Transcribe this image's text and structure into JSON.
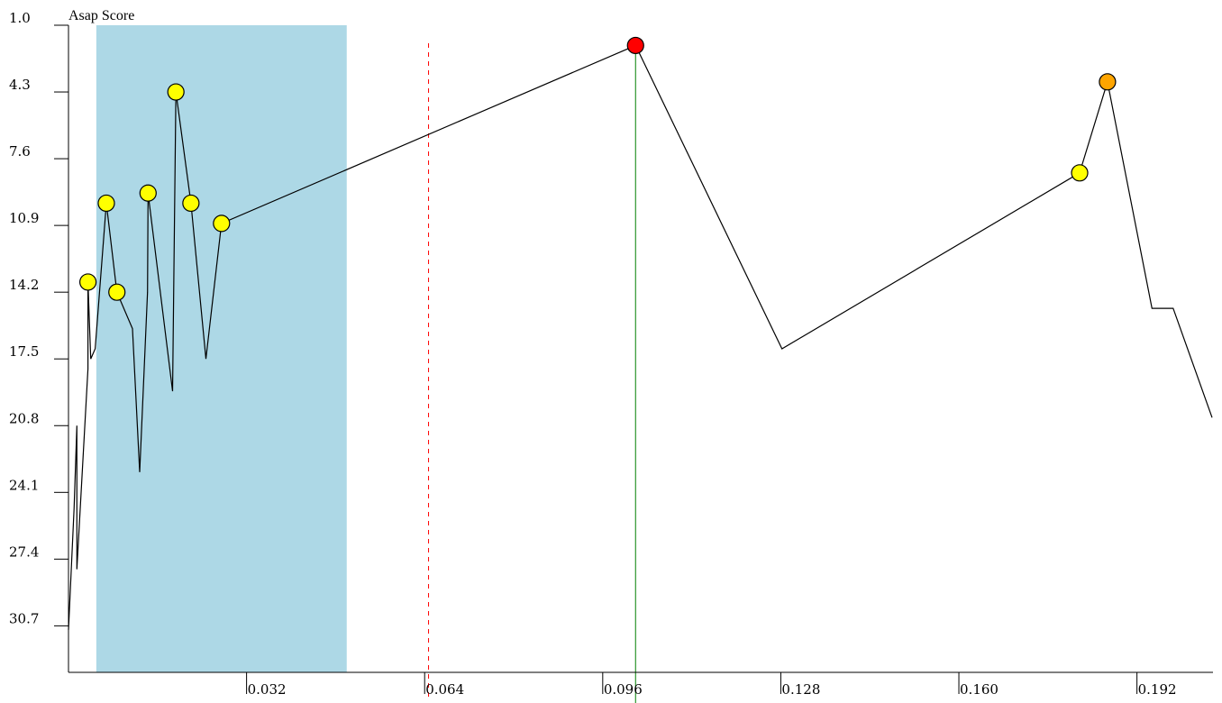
{
  "chart_data": {
    "type": "line",
    "title": "",
    "ylabel": "Asap Score",
    "xlabel": "",
    "y_inverted": true,
    "ylim": [
      1.0,
      33.0
    ],
    "xlim": [
      0.0,
      0.2055
    ],
    "yticks": [
      "1.0",
      "4.3",
      "7.6",
      "10.9",
      "14.2",
      "17.5",
      "20.8",
      "24.1",
      "27.4",
      "30.7"
    ],
    "xticks": [
      "0.032",
      "0.064",
      "0.096",
      "0.128",
      "0.160",
      "0.192"
    ],
    "highlight_band": {
      "x_start": 0.005,
      "x_end": 0.05,
      "color": "#add8e6"
    },
    "reference_lines": [
      {
        "x": 0.0647,
        "style": "dashed",
        "color": "#ff0000"
      },
      {
        "x": 0.1019,
        "style": "solid",
        "color": "#008000"
      }
    ],
    "series": [
      {
        "line_color": "#000000",
        "points": [
          {
            "x": 0.0,
            "y": 30.9
          },
          {
            "x": 0.001,
            "y": 24.9
          },
          {
            "x": 0.0015,
            "y": 20.8
          },
          {
            "x": 0.0015,
            "y": 27.9
          },
          {
            "x": 0.0035,
            "y": 18.0
          },
          {
            "x": 0.0035,
            "y": 13.7
          },
          {
            "x": 0.004,
            "y": 17.5
          },
          {
            "x": 0.0048,
            "y": 17.0
          },
          {
            "x": 0.0068,
            "y": 9.8
          },
          {
            "x": 0.0087,
            "y": 14.2
          },
          {
            "x": 0.0115,
            "y": 16.0
          },
          {
            "x": 0.0128,
            "y": 23.1
          },
          {
            "x": 0.0142,
            "y": 14.2
          },
          {
            "x": 0.0143,
            "y": 9.3
          },
          {
            "x": 0.0187,
            "y": 19.1
          },
          {
            "x": 0.0193,
            "y": 4.3
          },
          {
            "x": 0.022,
            "y": 9.8
          },
          {
            "x": 0.0247,
            "y": 17.5
          },
          {
            "x": 0.0275,
            "y": 10.8
          },
          {
            "x": 0.1019,
            "y": 2.0
          },
          {
            "x": 0.1282,
            "y": 17.0
          },
          {
            "x": 0.1817,
            "y": 8.3
          },
          {
            "x": 0.1867,
            "y": 3.8
          },
          {
            "x": 0.1947,
            "y": 15.0
          },
          {
            "x": 0.1985,
            "y": 15.0
          },
          {
            "x": 0.2055,
            "y": 20.4
          }
        ]
      }
    ],
    "markers": [
      {
        "x": 0.0035,
        "y": 13.7,
        "color": "#ffff00"
      },
      {
        "x": 0.0068,
        "y": 9.8,
        "color": "#ffff00"
      },
      {
        "x": 0.0087,
        "y": 14.2,
        "color": "#ffff00"
      },
      {
        "x": 0.0143,
        "y": 9.3,
        "color": "#ffff00"
      },
      {
        "x": 0.0193,
        "y": 4.3,
        "color": "#ffff00"
      },
      {
        "x": 0.022,
        "y": 9.8,
        "color": "#ffff00"
      },
      {
        "x": 0.0275,
        "y": 10.8,
        "color": "#ffff00"
      },
      {
        "x": 0.1019,
        "y": 2.0,
        "color": "#ff0000"
      },
      {
        "x": 0.1817,
        "y": 8.3,
        "color": "#ffff00"
      },
      {
        "x": 0.1867,
        "y": 3.8,
        "color": "#ffa500"
      }
    ],
    "grid": false,
    "legend": "none"
  }
}
